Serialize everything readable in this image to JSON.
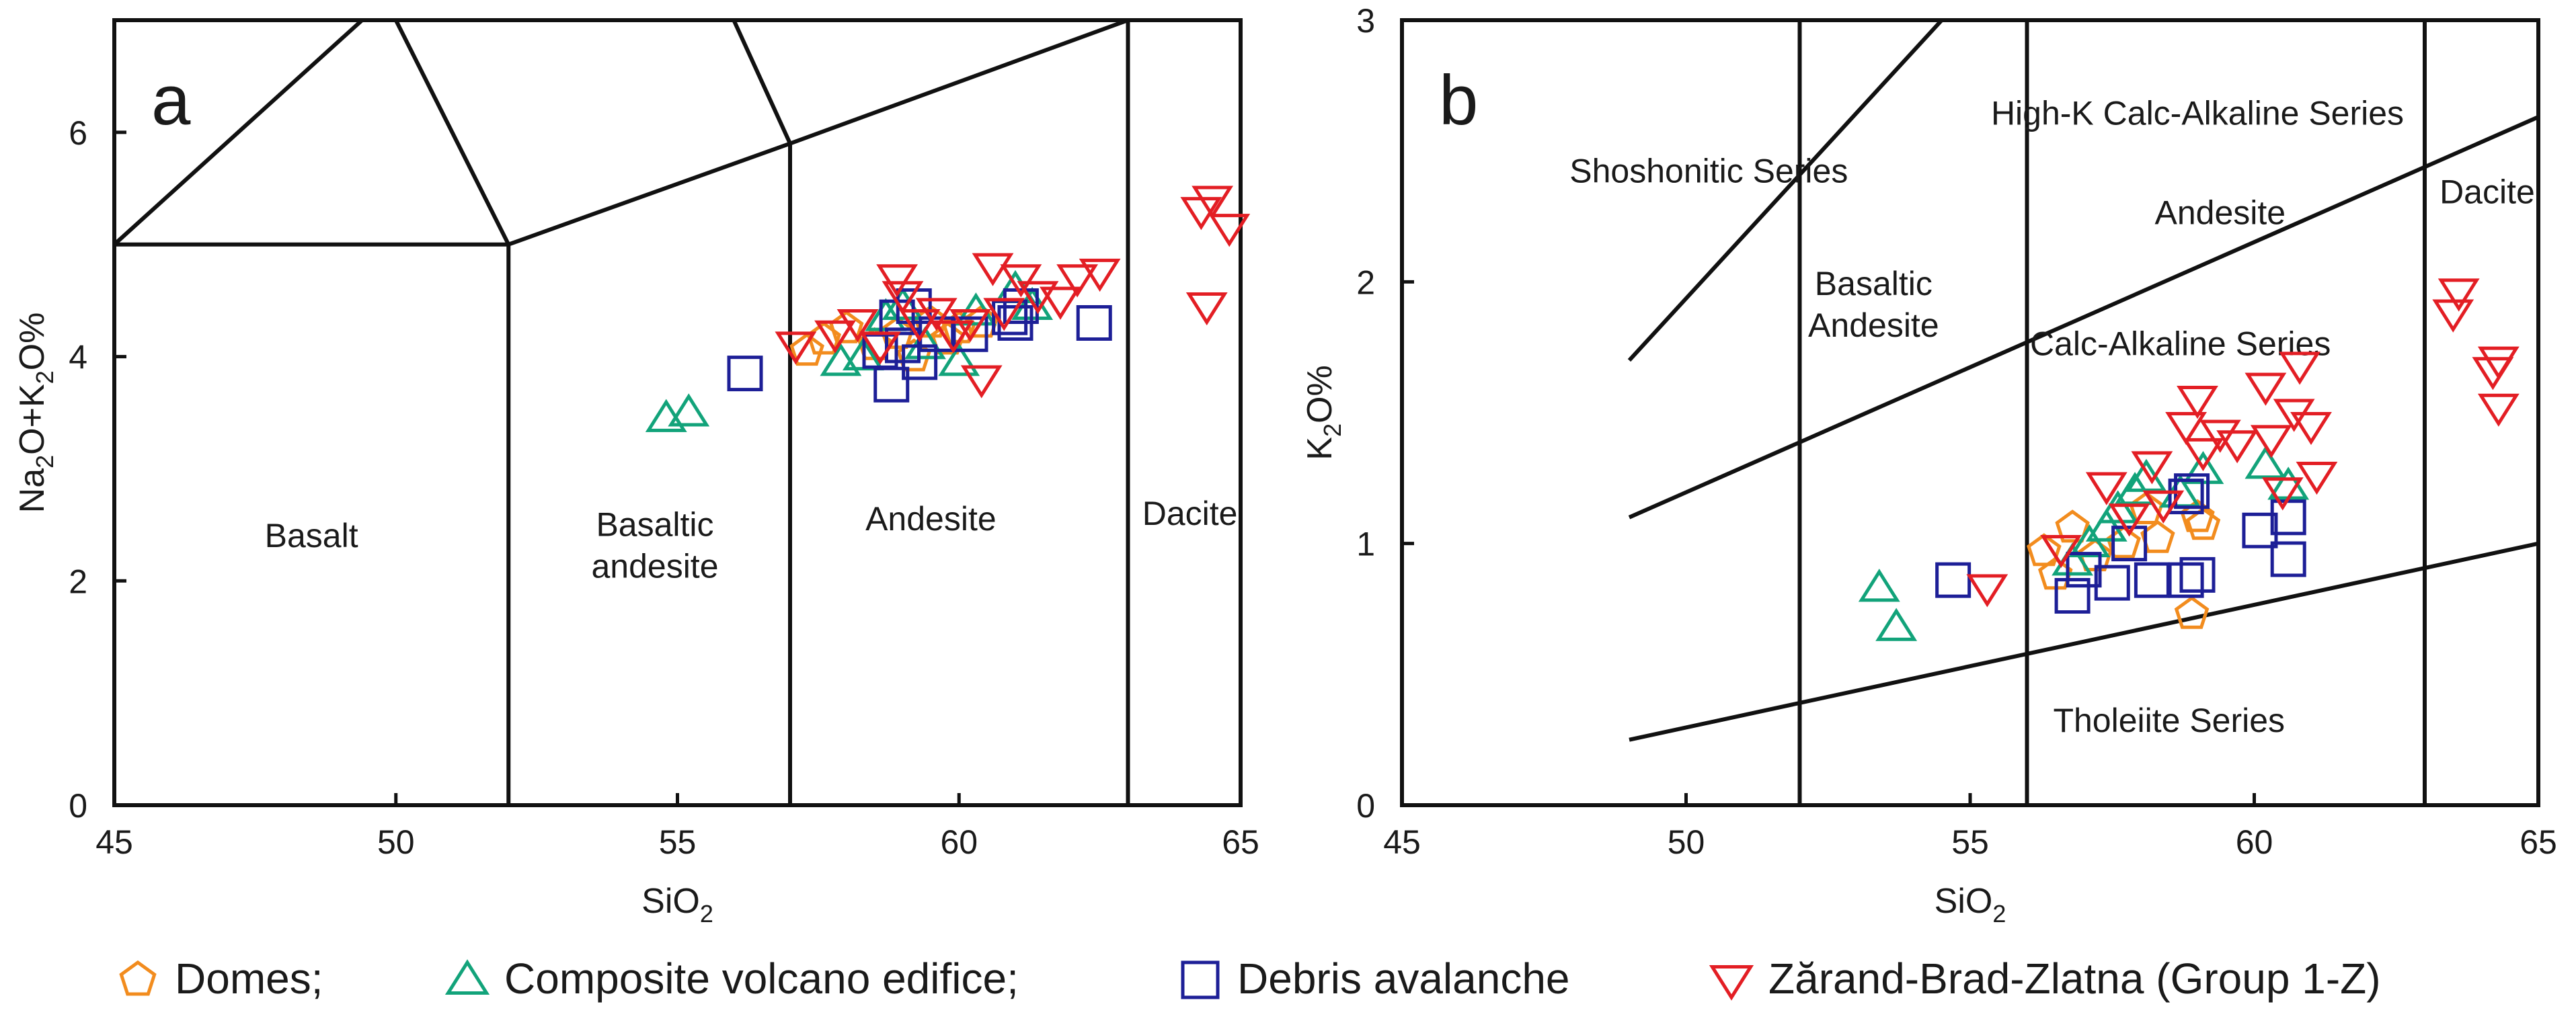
{
  "colors": {
    "domes": "#f28c1e",
    "composite": "#12a37a",
    "debris": "#1d1f97",
    "zbz": "#e31e24",
    "axis": "#111111"
  },
  "legend": [
    {
      "key": "domes",
      "shape": "pentagon",
      "label": "Domes;"
    },
    {
      "key": "composite",
      "shape": "triangle-up",
      "label": "Composite volcano edifice;"
    },
    {
      "key": "debris",
      "shape": "square",
      "label": "Debris avalanche"
    },
    {
      "key": "zbz",
      "shape": "triangle-down",
      "label": "Zărand-Brad-Zlatna (Group 1-Z)"
    }
  ],
  "chart_data": [
    {
      "type": "scatter",
      "panel": "a",
      "xlabel": {
        "main": "SiO",
        "sub": "2"
      },
      "ylabel": {
        "parts": [
          [
            "Na",
            ""
          ],
          [
            "2",
            "sub"
          ],
          [
            "O+K",
            ""
          ],
          [
            "2",
            "sub"
          ],
          [
            "O%",
            ""
          ]
        ]
      },
      "xlim": [
        45,
        65
      ],
      "ylim": [
        0,
        7
      ],
      "xticks": [
        45,
        50,
        55,
        60,
        65
      ],
      "yticks": [
        0,
        2,
        4,
        6
      ],
      "boundaries": [
        [
          [
            52,
            0
          ],
          [
            52,
            5
          ]
        ],
        [
          [
            57,
            0
          ],
          [
            57,
            5.9
          ]
        ],
        [
          [
            63,
            0
          ],
          [
            63,
            7
          ]
        ],
        [
          [
            45,
            5
          ],
          [
            52,
            5
          ]
        ],
        [
          [
            45,
            5
          ],
          [
            49.4,
            7
          ]
        ],
        [
          [
            50,
            7
          ],
          [
            52,
            5
          ]
        ],
        [
          [
            52,
            5
          ],
          [
            57,
            5.9
          ]
        ],
        [
          [
            57,
            5.9
          ],
          [
            63,
            7
          ]
        ],
        [
          [
            56,
            7
          ],
          [
            57,
            5.9
          ]
        ]
      ],
      "region_labels": [
        {
          "lines": [
            "Basalt"
          ],
          "x": 48.5,
          "y": 2.3
        },
        {
          "lines": [
            "Basaltic",
            "andesite"
          ],
          "x": 54.6,
          "y": 2.4
        },
        {
          "lines": [
            "Andesite"
          ],
          "x": 59.5,
          "y": 2.45
        },
        {
          "lines": [
            "Dacite"
          ],
          "x": 64.1,
          "y": 2.5
        }
      ],
      "series": [
        {
          "name": "Domes",
          "key": "domes",
          "points": [
            [
              57.3,
              4.05
            ],
            [
              57.6,
              4.15
            ],
            [
              58.0,
              4.25
            ],
            [
              58.5,
              4.1
            ],
            [
              58.9,
              4.2
            ],
            [
              59.2,
              4.0
            ],
            [
              59.5,
              4.3
            ],
            [
              59.8,
              4.15
            ],
            [
              60.0,
              4.25
            ],
            [
              60.4,
              4.3
            ]
          ]
        },
        {
          "name": "Composite volcano edifice",
          "key": "composite",
          "points": [
            [
              54.8,
              3.45
            ],
            [
              55.2,
              3.5
            ],
            [
              57.9,
              3.95
            ],
            [
              58.3,
              4.0
            ],
            [
              58.7,
              4.35
            ],
            [
              59.0,
              4.45
            ],
            [
              59.4,
              4.1
            ],
            [
              60.0,
              3.95
            ],
            [
              60.3,
              4.4
            ],
            [
              61.0,
              4.6
            ],
            [
              61.3,
              4.45
            ]
          ]
        },
        {
          "name": "Debris avalanche",
          "key": "debris",
          "points": [
            [
              56.2,
              3.85
            ],
            [
              58.6,
              4.05
            ],
            [
              58.8,
              3.75
            ],
            [
              58.9,
              4.35
            ],
            [
              59.0,
              4.1
            ],
            [
              59.2,
              4.45
            ],
            [
              59.3,
              3.95
            ],
            [
              59.6,
              4.2
            ],
            [
              60.2,
              4.2
            ],
            [
              60.9,
              4.35
            ],
            [
              61.0,
              4.3
            ],
            [
              61.1,
              4.45
            ],
            [
              62.4,
              4.3
            ]
          ]
        },
        {
          "name": "Zărand-Brad-Zlatna (Group 1-Z)",
          "key": "zbz",
          "points": [
            [
              57.1,
              4.1
            ],
            [
              57.8,
              4.2
            ],
            [
              58.2,
              4.3
            ],
            [
              58.6,
              4.1
            ],
            [
              58.9,
              4.7
            ],
            [
              59.0,
              4.55
            ],
            [
              59.3,
              4.3
            ],
            [
              59.6,
              4.4
            ],
            [
              59.9,
              4.2
            ],
            [
              60.2,
              4.3
            ],
            [
              60.4,
              3.8
            ],
            [
              60.6,
              4.8
            ],
            [
              60.8,
              4.4
            ],
            [
              61.1,
              4.7
            ],
            [
              61.4,
              4.55
            ],
            [
              61.8,
              4.5
            ],
            [
              62.1,
              4.7
            ],
            [
              62.5,
              4.75
            ],
            [
              64.3,
              5.3
            ],
            [
              64.5,
              5.4
            ],
            [
              64.8,
              5.15
            ],
            [
              64.4,
              4.45
            ]
          ]
        }
      ]
    },
    {
      "type": "scatter",
      "panel": "b",
      "xlabel": {
        "main": "SiO",
        "sub": "2"
      },
      "ylabel": {
        "parts": [
          [
            "K",
            ""
          ],
          [
            "2",
            "sub"
          ],
          [
            "O%",
            ""
          ]
        ]
      },
      "xlim": [
        45,
        65
      ],
      "ylim": [
        0,
        3
      ],
      "xticks": [
        45,
        50,
        55,
        60,
        65
      ],
      "yticks": [
        0,
        1,
        2,
        3
      ],
      "boundaries": [
        [
          [
            52,
            0
          ],
          [
            52,
            3
          ]
        ],
        [
          [
            56,
            0
          ],
          [
            56,
            3
          ]
        ],
        [
          [
            63,
            0
          ],
          [
            63,
            3
          ]
        ],
        [
          [
            49,
            0.25
          ],
          [
            65,
            1.0
          ]
        ],
        [
          [
            49,
            1.1
          ],
          [
            65,
            2.63
          ]
        ],
        [
          [
            49,
            1.7
          ],
          [
            54.5,
            3.0
          ]
        ]
      ],
      "region_labels": [
        {
          "lines": [
            "Shoshonitic Series"
          ],
          "x": 50.4,
          "y": 2.38
        },
        {
          "lines": [
            "High-K Calc-Alkaline Series"
          ],
          "x": 59.0,
          "y": 2.6
        },
        {
          "lines": [
            "Basaltic",
            "Andesite"
          ],
          "x": 53.3,
          "y": 1.95
        },
        {
          "lines": [
            "Andesite"
          ],
          "x": 59.4,
          "y": 2.22
        },
        {
          "lines": [
            "Dacite"
          ],
          "x": 64.1,
          "y": 2.3
        },
        {
          "lines": [
            "Calc-Alkaline Series"
          ],
          "x": 58.7,
          "y": 1.72
        },
        {
          "lines": [
            "Tholeiite Series"
          ],
          "x": 58.5,
          "y": 0.28
        }
      ],
      "series": [
        {
          "name": "Domes",
          "key": "domes",
          "points": [
            [
              56.3,
              0.97
            ],
            [
              56.5,
              0.88
            ],
            [
              56.8,
              1.06
            ],
            [
              57.2,
              0.95
            ],
            [
              57.7,
              1.0
            ],
            [
              58.1,
              1.13
            ],
            [
              58.3,
              1.02
            ],
            [
              58.9,
              0.73
            ],
            [
              59.0,
              1.1
            ],
            [
              59.1,
              1.07
            ]
          ]
        },
        {
          "name": "Composite volcano edifice",
          "key": "composite",
          "points": [
            [
              53.4,
              0.83
            ],
            [
              53.7,
              0.68
            ],
            [
              56.8,
              0.93
            ],
            [
              57.1,
              1.0
            ],
            [
              57.4,
              1.06
            ],
            [
              57.6,
              1.13
            ],
            [
              57.9,
              1.2
            ],
            [
              58.1,
              1.25
            ],
            [
              58.7,
              1.19
            ],
            [
              59.1,
              1.28
            ],
            [
              60.2,
              1.3
            ],
            [
              60.6,
              1.22
            ]
          ]
        },
        {
          "name": "Debris avalanche",
          "key": "debris",
          "points": [
            [
              54.7,
              0.86
            ],
            [
              56.8,
              0.8
            ],
            [
              57.0,
              0.9
            ],
            [
              57.5,
              0.85
            ],
            [
              57.8,
              1.0
            ],
            [
              58.2,
              0.86
            ],
            [
              58.8,
              0.86
            ],
            [
              58.8,
              1.18
            ],
            [
              58.9,
              1.2
            ],
            [
              59.0,
              0.88
            ],
            [
              60.1,
              1.05
            ],
            [
              60.6,
              1.1
            ],
            [
              60.6,
              0.94
            ]
          ]
        },
        {
          "name": "Zărand-Brad-Zlatna (Group 1-Z)",
          "key": "zbz",
          "points": [
            [
              55.3,
              0.83
            ],
            [
              56.6,
              0.98
            ],
            [
              57.4,
              1.22
            ],
            [
              57.8,
              1.1
            ],
            [
              58.2,
              1.3
            ],
            [
              58.4,
              1.15
            ],
            [
              58.8,
              1.45
            ],
            [
              59.0,
              1.55
            ],
            [
              59.1,
              1.35
            ],
            [
              59.4,
              1.42
            ],
            [
              59.7,
              1.38
            ],
            [
              60.2,
              1.6
            ],
            [
              60.3,
              1.4
            ],
            [
              60.5,
              1.2
            ],
            [
              60.7,
              1.5
            ],
            [
              60.8,
              1.68
            ],
            [
              61.0,
              1.45
            ],
            [
              61.1,
              1.26
            ],
            [
              63.6,
              1.96
            ],
            [
              63.5,
              1.88
            ],
            [
              64.2,
              1.66
            ],
            [
              64.3,
              1.7
            ],
            [
              64.3,
              1.52
            ]
          ]
        }
      ]
    }
  ]
}
